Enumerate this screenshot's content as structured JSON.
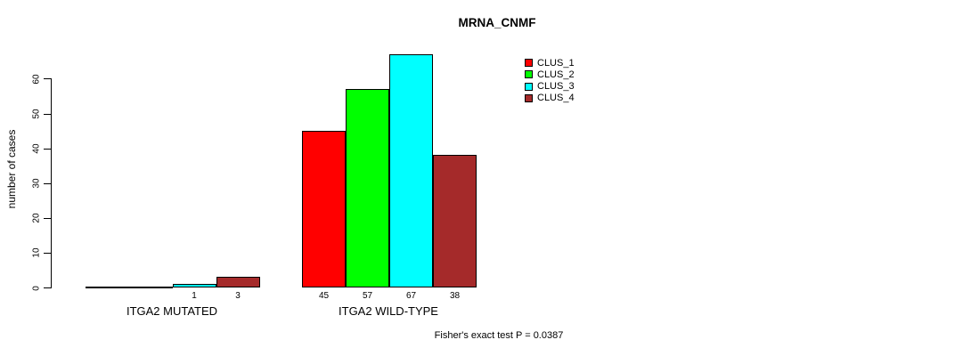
{
  "chart_data": {
    "type": "bar",
    "title": "MRNA_CNMF",
    "ylabel": "number of cases",
    "xlabel": "",
    "ylim": [
      0,
      60
    ],
    "yticks": [
      0,
      10,
      20,
      30,
      40,
      50,
      60
    ],
    "grid": false,
    "legend_position": "top-right",
    "categories": [
      "ITGA2 MUTATED",
      "ITGA2 WILD-TYPE"
    ],
    "series": [
      {
        "name": "CLUS_1",
        "color": "#ff0000",
        "values": [
          0,
          45
        ],
        "value_labels": [
          "",
          "45"
        ]
      },
      {
        "name": "CLUS_2",
        "color": "#00ff00",
        "values": [
          0,
          57
        ],
        "value_labels": [
          "",
          "57"
        ]
      },
      {
        "name": "CLUS_3",
        "color": "#00ffff",
        "values": [
          1,
          67
        ],
        "value_labels": [
          "1",
          "67"
        ]
      },
      {
        "name": "CLUS_4",
        "color": "#a52a2a",
        "values": [
          3,
          38
        ],
        "value_labels": [
          "3",
          "38"
        ]
      }
    ],
    "annotation": "Fisher's exact test P = 0.0387",
    "axis_color": "#000000",
    "background": "#ffffff"
  }
}
